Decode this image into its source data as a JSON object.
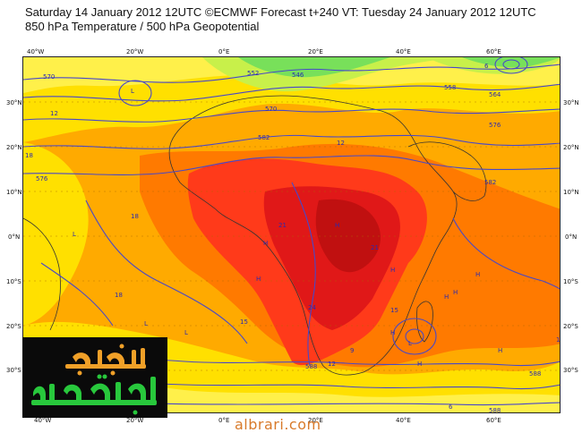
{
  "header": {
    "line1": "Saturday 14 January 2012 12UTC ©ECMWF Forecast t+240 VT: Tuesday 24 January 2012 12UTC",
    "line2": "850 hPa Temperature / 500 hPa Geopotential"
  },
  "axes": {
    "top": [
      "40°W",
      "20°W",
      "0°E",
      "20°E",
      "40°E",
      "60°E"
    ],
    "bottom": [
      "40°W",
      "20°W",
      "0°E",
      "20°E",
      "40°E",
      "60°E"
    ],
    "left": [
      "30°N",
      "20°N",
      "10°N",
      "0°N",
      "10°S",
      "20°S",
      "30°S"
    ],
    "right": [
      "30°N",
      "20°N",
      "10°N",
      "0°N",
      "10°S",
      "20°S",
      "30°S"
    ]
  },
  "contour_labels": {
    "geopotential": [
      "570",
      "546",
      "552",
      "558",
      "564",
      "570",
      "576",
      "582",
      "576",
      "582",
      "588",
      "588",
      "588",
      "582",
      "582",
      "576",
      "570",
      "564",
      "558",
      "546"
    ],
    "temperature": [
      "6",
      "6",
      "12",
      "18",
      "18",
      "12",
      "18",
      "21",
      "21",
      "21",
      "24",
      "24",
      "18",
      "15",
      "12",
      "12",
      "9",
      "6",
      "15",
      "12"
    ]
  },
  "pressure_markers": [
    "L",
    "L",
    "H",
    "H",
    "H",
    "H",
    "H",
    "H",
    "L",
    "L",
    "H",
    "H",
    "H",
    "L",
    "H"
  ],
  "logo": {
    "text": "البراري أبو ميعاد"
  },
  "watermark": "albrari.com",
  "colors": {
    "ocean_yellow": "#ffe000",
    "warm_orange": "#ffaa00",
    "hot_orange": "#ff7a00",
    "hot_red": "#ff3a1a",
    "very_hot": "#e01818",
    "extreme": "#c01010",
    "cool_yellow": "#fff04a",
    "cold_green": "#c8f04a",
    "colder_green": "#78e05a",
    "contour_blue": "#4848c8",
    "coastline": "#333333",
    "logo_green": "#28c83c",
    "logo_orange": "#f0a028"
  }
}
